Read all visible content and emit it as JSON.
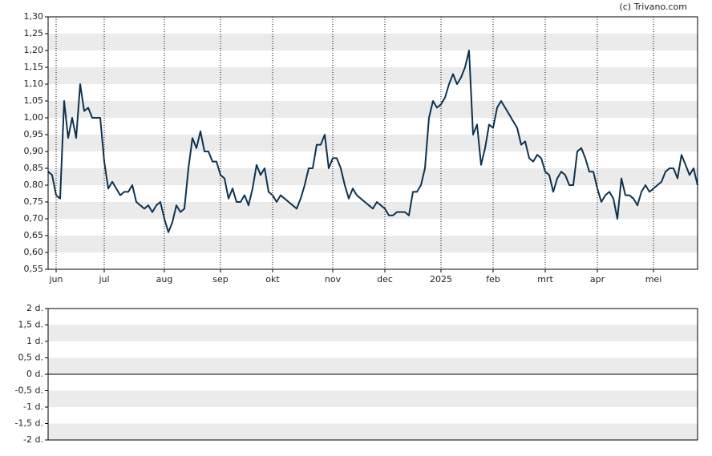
{
  "chart_data": [
    {
      "type": "line",
      "credit": "(c) Trivano.com",
      "categories": [
        null,
        null,
        "jun",
        null,
        null,
        null,
        null,
        null,
        null,
        null,
        null,
        null,
        null,
        null,
        "jul",
        null,
        null,
        null,
        null,
        null,
        null,
        null,
        null,
        null,
        null,
        null,
        null,
        null,
        null,
        "aug",
        null,
        null,
        null,
        null,
        null,
        null,
        null,
        null,
        null,
        null,
        null,
        null,
        null,
        "sep",
        null,
        null,
        null,
        null,
        null,
        null,
        null,
        null,
        null,
        null,
        null,
        null,
        "okt",
        null,
        null,
        null,
        null,
        null,
        null,
        null,
        null,
        null,
        null,
        null,
        null,
        null,
        null,
        "nov",
        null,
        null,
        null,
        null,
        null,
        null,
        null,
        null,
        null,
        null,
        null,
        null,
        "dec",
        null,
        null,
        null,
        null,
        null,
        null,
        null,
        null,
        null,
        null,
        null,
        null,
        null,
        "2025",
        null,
        null,
        null,
        null,
        null,
        null,
        null,
        null,
        null,
        null,
        null,
        null,
        "feb",
        null,
        null,
        null,
        null,
        null,
        null,
        null,
        null,
        null,
        null,
        null,
        null,
        "mrt",
        null,
        null,
        null,
        null,
        null,
        null,
        null,
        null,
        null,
        null,
        null,
        null,
        "apr",
        null,
        null,
        null,
        null,
        null,
        null,
        null,
        null,
        null,
        null,
        null,
        null,
        null,
        "mei",
        null,
        null,
        null,
        null,
        null,
        null,
        null,
        null,
        null,
        null,
        null
      ],
      "values": [
        0.84,
        0.83,
        0.77,
        0.76,
        1.05,
        0.94,
        1.0,
        0.94,
        1.1,
        1.02,
        1.03,
        1.0,
        1.0,
        1.0,
        0.87,
        0.79,
        0.81,
        0.79,
        0.77,
        0.78,
        0.78,
        0.8,
        0.75,
        0.74,
        0.73,
        0.74,
        0.72,
        0.74,
        0.75,
        0.7,
        0.66,
        0.69,
        0.74,
        0.72,
        0.73,
        0.85,
        0.94,
        0.91,
        0.96,
        0.9,
        0.9,
        0.87,
        0.87,
        0.83,
        0.82,
        0.76,
        0.79,
        0.75,
        0.75,
        0.77,
        0.74,
        0.79,
        0.86,
        0.83,
        0.85,
        0.78,
        0.77,
        0.75,
        0.77,
        0.76,
        0.75,
        0.74,
        0.73,
        0.76,
        0.8,
        0.85,
        0.85,
        0.92,
        0.92,
        0.95,
        0.85,
        0.88,
        0.88,
        0.85,
        0.8,
        0.76,
        0.79,
        0.77,
        0.76,
        0.75,
        0.74,
        0.73,
        0.75,
        0.74,
        0.73,
        0.71,
        0.71,
        0.72,
        0.72,
        0.72,
        0.71,
        0.78,
        0.78,
        0.8,
        0.85,
        1.0,
        1.05,
        1.03,
        1.04,
        1.06,
        1.1,
        1.13,
        1.1,
        1.12,
        1.15,
        1.2,
        0.95,
        0.98,
        0.86,
        0.91,
        0.98,
        0.97,
        1.03,
        1.05,
        1.03,
        1.01,
        0.99,
        0.97,
        0.92,
        0.93,
        0.88,
        0.87,
        0.89,
        0.88,
        0.84,
        0.83,
        0.78,
        0.82,
        0.84,
        0.83,
        0.8,
        0.8,
        0.9,
        0.91,
        0.88,
        0.84,
        0.84,
        0.79,
        0.75,
        0.77,
        0.78,
        0.76,
        0.7,
        0.82,
        0.77,
        0.77,
        0.76,
        0.74,
        0.78,
        0.8,
        0.78,
        0.79,
        0.8,
        0.81,
        0.84,
        0.85,
        0.85,
        0.82,
        0.89,
        0.86,
        0.83,
        0.85,
        0.8
      ],
      "color": "#0d3350",
      "ylim": [
        0.55,
        1.3
      ],
      "yticks": [
        {
          "value": 0.55,
          "label": "0,55"
        },
        {
          "value": 0.6,
          "label": "0,60"
        },
        {
          "value": 0.65,
          "label": "0,65"
        },
        {
          "value": 0.7,
          "label": "0,70"
        },
        {
          "value": 0.75,
          "label": "0,75"
        },
        {
          "value": 0.8,
          "label": "0,80"
        },
        {
          "value": 0.85,
          "label": "0,85"
        },
        {
          "value": 0.9,
          "label": "0,90"
        },
        {
          "value": 0.95,
          "label": "0,95"
        },
        {
          "value": 1.0,
          "label": "1,00"
        },
        {
          "value": 1.05,
          "label": "1,05"
        },
        {
          "value": 1.1,
          "label": "1,10"
        },
        {
          "value": 1.15,
          "label": "1,15"
        },
        {
          "value": 1.2,
          "label": "1,20"
        },
        {
          "value": 1.25,
          "label": "1,25"
        },
        {
          "value": 1.3,
          "label": "1,30"
        }
      ],
      "grid": "bands",
      "month_lines": true
    },
    {
      "type": "empty",
      "ylim": [
        -2,
        2
      ],
      "yticks": [
        {
          "value": -2,
          "label": "-2 d."
        },
        {
          "value": -1.5,
          "label": "-1,5 d."
        },
        {
          "value": -1,
          "label": "-1 d."
        },
        {
          "value": -0.5,
          "label": "-0,5 d."
        },
        {
          "value": 0,
          "label": "0 d."
        },
        {
          "value": 0.5,
          "label": "0,5 d."
        },
        {
          "value": 1,
          "label": "1 d."
        },
        {
          "value": 1.5,
          "label": "1,5 d."
        },
        {
          "value": 2,
          "label": "2 d."
        }
      ],
      "grid": "bands",
      "zero_line": true
    }
  ]
}
